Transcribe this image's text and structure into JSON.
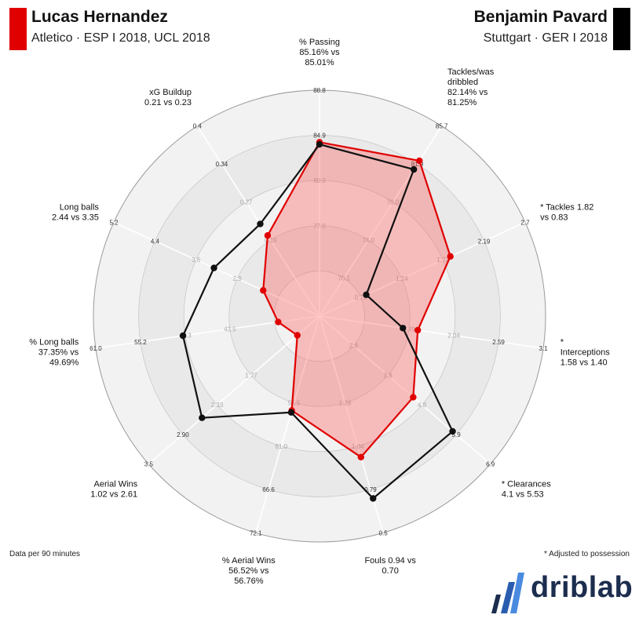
{
  "header": {
    "player1": {
      "name": "Lucas Hernandez",
      "subtitle": "Atletico · ESP I 2018, UCL 2018",
      "color": "#e00000"
    },
    "player2": {
      "name": "Benjamin Pavard",
      "subtitle": "Stuttgart · GER I 2018",
      "color": "#000000"
    }
  },
  "footer": {
    "left_note": "Data per 90 minutes",
    "right_note": "* Adjusted to possession",
    "brand": "driblab"
  },
  "chart_data": {
    "type": "radar",
    "ring_count": 5,
    "axes": [
      {
        "label": [
          "% Passing",
          "85.16% vs",
          "85.01%"
        ],
        "ticks": [
          "77.0",
          "80.9",
          "84.9",
          "88.8"
        ],
        "p1": 85.16,
        "p2": 85.01,
        "min": 73.0,
        "max": 88.8
      },
      {
        "label": [
          "Tackles/was",
          "dribbled",
          "82.14% vs",
          "81.25%"
        ],
        "ticks": [
          "70.1",
          "74.0",
          "78.0",
          "81.9",
          "85.7"
        ],
        "p1": 82.14,
        "p2": 81.25,
        "min": 66.2,
        "max": 85.7
      },
      {
        "label": [
          "* Tackles 1.82",
          "vs 0.83"
        ],
        "ticks": [
          "0.76",
          "1.24",
          "1.72",
          "2.19",
          "2.7"
        ],
        "p1": 1.82,
        "p2": 0.83,
        "min": 0.28,
        "max": 2.7
      },
      {
        "label": [
          "*",
          "Interceptions",
          "1.58 vs 1.40"
        ],
        "ticks": [
          "1.49",
          "2.04",
          "2.59",
          "3.1"
        ],
        "p1": 1.58,
        "p2": 1.4,
        "min": 0.39,
        "max": 3.1
      },
      {
        "label": [
          "* Clearances",
          "4.1 vs 5.53"
        ],
        "ticks": [
          "2.8",
          "3.8",
          "4.8",
          "5.9",
          "6.9"
        ],
        "p1": 4.1,
        "p2": 5.53,
        "min": 0.7,
        "max": 6.9
      },
      {
        "label": [
          "Fouls 0.94 vs",
          "0.70"
        ],
        "ticks": [
          "1.28",
          "1.04",
          "0.79",
          "0.5"
        ],
        "p1": 0.94,
        "p2": 0.7,
        "min": 1.76,
        "max": 0.5
      },
      {
        "label": [
          "% Aerial Wins",
          "56.52% vs",
          "56.76%"
        ],
        "ticks": [
          "55.5",
          "61.0",
          "66.6",
          "72.1"
        ],
        "p1": 56.52,
        "p2": 56.76,
        "min": 44.5,
        "max": 72.1
      },
      {
        "label": [
          "Aerial Wins",
          "1.02 vs 2.61"
        ],
        "ticks": [
          "1.77",
          "2.33",
          "2.90",
          "3.5"
        ],
        "p1": 1.02,
        "p2": 2.61,
        "min": 0.65,
        "max": 3.5
      },
      {
        "label": [
          "% Long balls",
          "37.35% vs",
          "49.69%"
        ],
        "ticks": [
          "43.5",
          "49.3",
          "55.2",
          "61.0"
        ],
        "p1": 37.35,
        "p2": 49.69,
        "min": 32.0,
        "max": 61.0
      },
      {
        "label": [
          "Long balls",
          "2.44 vs 3.35"
        ],
        "ticks": [
          "2.9",
          "3.6",
          "4.4",
          "5.2"
        ],
        "p1": 2.44,
        "p2": 3.35,
        "min": 1.4,
        "max": 5.2
      },
      {
        "label": [
          "xG Buildup",
          "0.21 vs 0.23"
        ],
        "ticks": [
          "0.19",
          "0.27",
          "0.34",
          "0.4"
        ],
        "p1": 0.21,
        "p2": 0.23,
        "min": 0.07,
        "max": 0.4
      }
    ]
  }
}
